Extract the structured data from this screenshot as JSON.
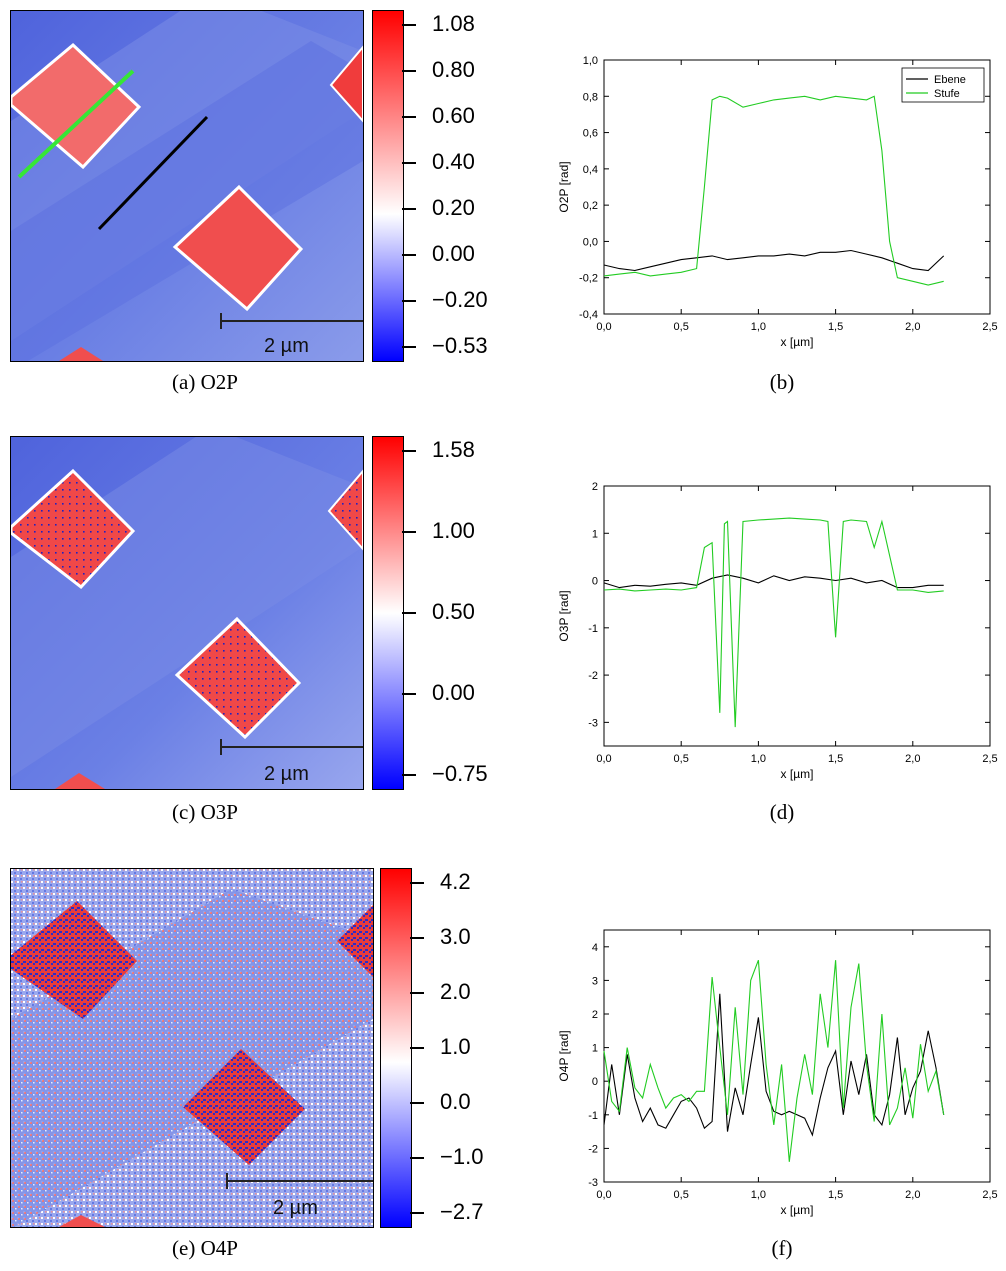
{
  "panels": [
    {
      "id": "a",
      "caption": "(a) O2P",
      "scale_label": "2 µm",
      "colorbar_labels": [
        "1.08",
        "0.80",
        "0.60",
        "0.40",
        "0.20",
        "0.00",
        "−0.20",
        "−0.53"
      ]
    },
    {
      "id": "c",
      "caption": "(c) O3P",
      "scale_label": "2 µm",
      "colorbar_labels": [
        "1.58",
        "1.00",
        "0.50",
        "0.00",
        "−0.75"
      ]
    },
    {
      "id": "e",
      "caption": "(e) O4P",
      "scale_label": "2 µm",
      "colorbar_labels": [
        "4.2",
        "3.0",
        "2.0",
        "1.0",
        "0.0",
        "−1.0",
        "−2.7"
      ]
    }
  ],
  "colors": {
    "ebene": "#000000",
    "stufe": "#22cc22",
    "map_red": "#f04b4b",
    "map_blue": "#5a6ee0"
  },
  "chart_data": [
    {
      "type": "line",
      "caption": "(b)",
      "xlabel": "x [µm]",
      "ylabel": "O2P [rad]",
      "xlim": [
        0.0,
        2.5
      ],
      "ylim": [
        -0.4,
        1.0
      ],
      "xticks": [
        "0,0",
        "0,5",
        "1,0",
        "1,5",
        "2,0",
        "2,5"
      ],
      "yticks": [
        "-0,4",
        "-0,2",
        "0,0",
        "0,2",
        "0,4",
        "0,6",
        "0,8",
        "1,0"
      ],
      "legend": "top-right",
      "series": [
        {
          "name": "Ebene",
          "x": [
            0.0,
            0.1,
            0.2,
            0.3,
            0.4,
            0.5,
            0.6,
            0.7,
            0.8,
            0.9,
            1.0,
            1.1,
            1.2,
            1.3,
            1.4,
            1.5,
            1.6,
            1.7,
            1.8,
            1.9,
            2.0,
            2.1,
            2.2
          ],
          "y": [
            -0.13,
            -0.15,
            -0.16,
            -0.14,
            -0.12,
            -0.1,
            -0.09,
            -0.08,
            -0.1,
            -0.09,
            -0.08,
            -0.08,
            -0.07,
            -0.08,
            -0.06,
            -0.06,
            -0.05,
            -0.07,
            -0.09,
            -0.12,
            -0.15,
            -0.16,
            -0.08
          ]
        },
        {
          "name": "Stufe",
          "x": [
            0.0,
            0.1,
            0.2,
            0.3,
            0.4,
            0.5,
            0.6,
            0.65,
            0.7,
            0.75,
            0.8,
            0.9,
            1.0,
            1.1,
            1.2,
            1.3,
            1.4,
            1.5,
            1.6,
            1.7,
            1.75,
            1.8,
            1.85,
            1.9,
            2.0,
            2.1,
            2.2
          ],
          "y": [
            -0.19,
            -0.18,
            -0.17,
            -0.19,
            -0.18,
            -0.17,
            -0.15,
            0.3,
            0.78,
            0.8,
            0.79,
            0.74,
            0.76,
            0.78,
            0.79,
            0.8,
            0.78,
            0.8,
            0.79,
            0.78,
            0.8,
            0.5,
            0.0,
            -0.2,
            -0.22,
            -0.24,
            -0.22
          ]
        }
      ]
    },
    {
      "type": "line",
      "caption": "(d)",
      "xlabel": "x [µm]",
      "ylabel": "O3P [rad]",
      "xlim": [
        0.0,
        2.5
      ],
      "ylim": [
        -3.5,
        2.0
      ],
      "xticks": [
        "0,0",
        "0,5",
        "1,0",
        "1,5",
        "2,0",
        "2,5"
      ],
      "yticks": [
        "-3",
        "-2",
        "-1",
        "0",
        "1",
        "2"
      ],
      "series": [
        {
          "name": "Ebene",
          "x": [
            0.0,
            0.1,
            0.2,
            0.3,
            0.4,
            0.5,
            0.6,
            0.7,
            0.8,
            0.9,
            1.0,
            1.1,
            1.2,
            1.3,
            1.4,
            1.5,
            1.6,
            1.7,
            1.8,
            1.9,
            2.0,
            2.1,
            2.2
          ],
          "y": [
            -0.05,
            -0.15,
            -0.1,
            -0.12,
            -0.08,
            -0.05,
            -0.1,
            0.05,
            0.12,
            0.05,
            -0.05,
            0.1,
            0.0,
            0.08,
            0.05,
            0.0,
            0.05,
            -0.05,
            0.0,
            -0.15,
            -0.15,
            -0.1,
            -0.1
          ]
        },
        {
          "name": "Stufe",
          "x": [
            0.0,
            0.1,
            0.2,
            0.3,
            0.4,
            0.5,
            0.6,
            0.65,
            0.7,
            0.75,
            0.78,
            0.8,
            0.85,
            0.9,
            1.0,
            1.1,
            1.2,
            1.3,
            1.4,
            1.45,
            1.5,
            1.55,
            1.6,
            1.7,
            1.75,
            1.8,
            1.9,
            2.0,
            2.1,
            2.2
          ],
          "y": [
            -0.2,
            -0.18,
            -0.22,
            -0.2,
            -0.18,
            -0.2,
            -0.15,
            0.7,
            0.8,
            -2.8,
            1.2,
            1.25,
            -3.1,
            1.25,
            1.28,
            1.3,
            1.32,
            1.3,
            1.28,
            1.25,
            -1.2,
            1.25,
            1.28,
            1.25,
            0.7,
            1.25,
            -0.2,
            -0.2,
            -0.25,
            -0.22
          ]
        }
      ]
    },
    {
      "type": "line",
      "caption": "(f)",
      "xlabel": "x [µm]",
      "ylabel": "O4P [rad]",
      "xlim": [
        0.0,
        2.5
      ],
      "ylim": [
        -3.0,
        4.5
      ],
      "xticks": [
        "0,0",
        "0,5",
        "1,0",
        "1,5",
        "2,0",
        "2,5"
      ],
      "yticks": [
        "-3",
        "-2",
        "-1",
        "0",
        "1",
        "2",
        "3",
        "4"
      ],
      "series": [
        {
          "name": "Ebene",
          "x": [
            0.0,
            0.05,
            0.1,
            0.15,
            0.2,
            0.25,
            0.3,
            0.35,
            0.4,
            0.45,
            0.5,
            0.55,
            0.6,
            0.65,
            0.7,
            0.75,
            0.8,
            0.85,
            0.9,
            0.95,
            1.0,
            1.05,
            1.1,
            1.15,
            1.2,
            1.25,
            1.3,
            1.35,
            1.4,
            1.45,
            1.5,
            1.55,
            1.6,
            1.65,
            1.7,
            1.75,
            1.8,
            1.85,
            1.9,
            1.95,
            2.0,
            2.05,
            2.1,
            2.15,
            2.2
          ],
          "y": [
            -1.3,
            0.5,
            -1.0,
            0.8,
            -0.5,
            -1.2,
            -0.8,
            -1.3,
            -1.4,
            -1.0,
            -0.6,
            -0.5,
            -0.8,
            -1.4,
            -1.2,
            2.6,
            -1.5,
            -0.2,
            -1.0,
            0.5,
            1.9,
            -0.3,
            -0.9,
            -1.0,
            -0.9,
            -1.0,
            -1.1,
            -1.6,
            -0.5,
            0.4,
            0.9,
            -1.0,
            0.6,
            -0.4,
            0.8,
            -1.0,
            -1.3,
            -0.4,
            1.3,
            -1.0,
            -0.2,
            0.3,
            1.5,
            0.4,
            -1.0
          ]
        },
        {
          "name": "Stufe",
          "x": [
            0.0,
            0.05,
            0.1,
            0.15,
            0.2,
            0.25,
            0.3,
            0.35,
            0.4,
            0.45,
            0.5,
            0.55,
            0.6,
            0.65,
            0.7,
            0.75,
            0.8,
            0.85,
            0.9,
            0.95,
            1.0,
            1.05,
            1.1,
            1.15,
            1.2,
            1.25,
            1.3,
            1.35,
            1.4,
            1.45,
            1.5,
            1.55,
            1.6,
            1.65,
            1.7,
            1.75,
            1.8,
            1.85,
            1.9,
            1.95,
            2.0,
            2.05,
            2.1,
            2.15,
            2.2
          ],
          "y": [
            0.9,
            -0.6,
            -0.9,
            1.0,
            -0.2,
            -0.5,
            0.5,
            -0.2,
            -0.8,
            -0.5,
            -0.4,
            -0.6,
            -0.3,
            -0.3,
            3.1,
            1.0,
            -1.0,
            2.2,
            -0.4,
            3.0,
            3.6,
            0.5,
            -1.3,
            0.5,
            -2.4,
            -0.5,
            0.8,
            -0.4,
            2.6,
            1.0,
            3.6,
            -0.8,
            2.2,
            3.5,
            0.5,
            -1.2,
            2.0,
            -1.3,
            -0.8,
            0.4,
            -1.1,
            1.1,
            -0.3,
            0.3,
            -1.0
          ]
        }
      ]
    }
  ]
}
